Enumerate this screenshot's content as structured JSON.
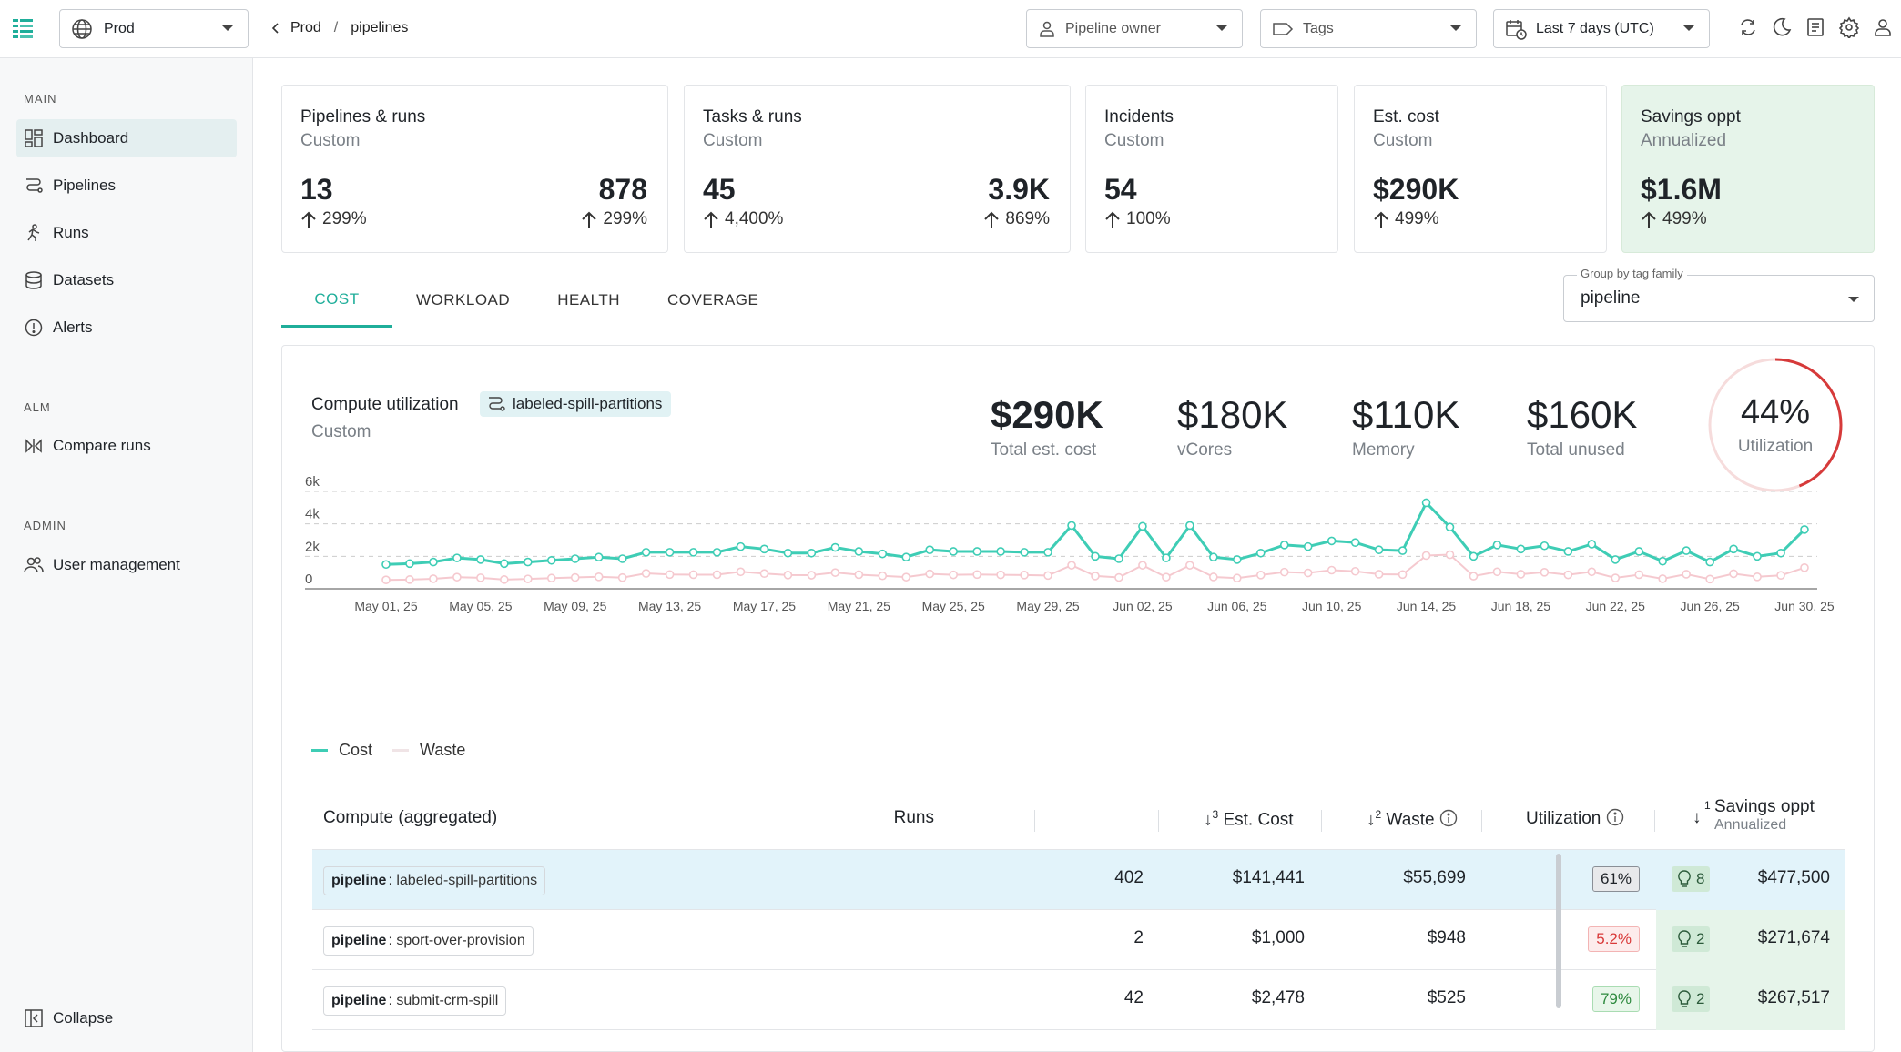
{
  "header": {
    "environment": "Prod",
    "breadcrumb": [
      "Prod",
      "pipelines"
    ],
    "filters": {
      "owner_placeholder": "Pipeline owner",
      "tags_placeholder": "Tags",
      "date_range": "Last 7 days (UTC)"
    },
    "icons": [
      "refresh-icon",
      "dark-mode-icon",
      "docs-icon",
      "settings-icon",
      "user-icon"
    ]
  },
  "sidebar": {
    "main_title": "MAIN",
    "main_items": [
      {
        "label": "Dashboard",
        "icon": "dashboard-icon",
        "active": true
      },
      {
        "label": "Pipelines",
        "icon": "pipelines-icon"
      },
      {
        "label": "Runs",
        "icon": "runs-icon"
      },
      {
        "label": "Datasets",
        "icon": "datasets-icon"
      },
      {
        "label": "Alerts",
        "icon": "alerts-icon"
      }
    ],
    "alm_title": "ALM",
    "alm_items": [
      {
        "label": "Compare runs",
        "icon": "compare-icon"
      }
    ],
    "admin_title": "ADMIN",
    "admin_items": [
      {
        "label": "User management",
        "icon": "users-icon"
      }
    ],
    "collapse_label": "Collapse"
  },
  "kpis": [
    {
      "title": "Pipelines & runs",
      "subtitle": "Custom",
      "values": [
        {
          "value": "13",
          "delta": "299%"
        },
        {
          "value": "878",
          "delta": "299%"
        }
      ]
    },
    {
      "title": "Tasks & runs",
      "subtitle": "Custom",
      "values": [
        {
          "value": "45",
          "delta": "4,400%"
        },
        {
          "value": "3.9K",
          "delta": "869%"
        }
      ]
    },
    {
      "title": "Incidents",
      "subtitle": "Custom",
      "values": [
        {
          "value": "54",
          "delta": "100%"
        }
      ]
    },
    {
      "title": "Est. cost",
      "subtitle": "Custom",
      "values": [
        {
          "value": "$290K",
          "delta": "499%"
        }
      ]
    },
    {
      "title": "Savings oppt",
      "subtitle": "Annualized",
      "values": [
        {
          "value": "$1.6M",
          "delta": "499%"
        }
      ]
    }
  ],
  "tabs": [
    "COST",
    "WORKLOAD",
    "HEALTH",
    "COVERAGE"
  ],
  "active_tab": "COST",
  "group_by": {
    "label": "Group by tag family",
    "value": "pipeline"
  },
  "utilization": {
    "title": "Compute utilization",
    "subtitle": "Custom",
    "tag": "labeled-spill-partitions",
    "metrics": [
      {
        "value": "$290K",
        "label": "Total est. cost"
      },
      {
        "value": "$180K",
        "label": "vCores"
      },
      {
        "value": "$110K",
        "label": "Memory"
      },
      {
        "value": "$160K",
        "label": "Total unused"
      }
    ],
    "gauge": {
      "value": "44%",
      "label": "Utilization",
      "fraction": 0.44
    }
  },
  "chart_data": {
    "type": "line",
    "x": [
      "May 01",
      "May 02",
      "May 03",
      "May 04",
      "May 05",
      "May 06",
      "May 07",
      "May 08",
      "May 09",
      "May 10",
      "May 11",
      "May 12",
      "May 13",
      "May 14",
      "May 15",
      "May 16",
      "May 17",
      "May 18",
      "May 19",
      "May 20",
      "May 21",
      "May 22",
      "May 23",
      "May 24",
      "May 25",
      "May 26",
      "May 27",
      "May 28",
      "May 29",
      "May 30",
      "May 31",
      "Jun 01",
      "Jun 02",
      "Jun 03",
      "Jun 04",
      "Jun 05",
      "Jun 06",
      "Jun 07",
      "Jun 08",
      "Jun 09",
      "Jun 10",
      "Jun 11",
      "Jun 12",
      "Jun 13",
      "Jun 14",
      "Jun 15",
      "Jun 16",
      "Jun 17",
      "Jun 18",
      "Jun 19",
      "Jun 20",
      "Jun 21",
      "Jun 22",
      "Jun 23",
      "Jun 24",
      "Jun 25",
      "Jun 26",
      "Jun 27",
      "Jun 28",
      "Jun 29",
      "Jun 30"
    ],
    "xticks": [
      "May 01, 25",
      "May 05, 25",
      "May 09, 25",
      "May 13, 25",
      "May 17, 25",
      "May 21, 25",
      "May 25, 25",
      "May 29, 25",
      "Jun 02, 25",
      "Jun 06, 25",
      "Jun 10, 25",
      "Jun 14, 25",
      "Jun 18, 25",
      "Jun 22, 25",
      "Jun 26, 25",
      "Jun 30, 25"
    ],
    "yticks": [
      "0",
      "2k",
      "4k",
      "6k"
    ],
    "ylim": [
      0,
      6000
    ],
    "series": [
      {
        "name": "Cost",
        "color": "#3ecdb5",
        "values": [
          1500,
          1550,
          1650,
          1900,
          1800,
          1550,
          1650,
          1750,
          1850,
          1950,
          1850,
          2250,
          2250,
          2250,
          2250,
          2600,
          2450,
          2200,
          2200,
          2550,
          2300,
          2150,
          1950,
          2400,
          2300,
          2300,
          2300,
          2250,
          2250,
          3900,
          2000,
          1850,
          3850,
          1900,
          3900,
          1950,
          1800,
          2200,
          2700,
          2600,
          2950,
          2850,
          2400,
          2350,
          5300,
          3800,
          2000,
          2700,
          2450,
          2650,
          2300,
          2750,
          1800,
          2300,
          1700,
          2350,
          1650,
          2450,
          2000,
          2200,
          3650
        ]
      },
      {
        "name": "Waste",
        "color": "#f5c9cf",
        "values": [
          550,
          570,
          620,
          720,
          680,
          570,
          610,
          660,
          700,
          740,
          690,
          950,
          880,
          870,
          870,
          1050,
          940,
          850,
          840,
          1000,
          870,
          800,
          720,
          920,
          860,
          880,
          860,
          850,
          820,
          1450,
          790,
          700,
          1450,
          720,
          1450,
          730,
          660,
          850,
          1030,
          980,
          1150,
          1080,
          900,
          880,
          2050,
          2100,
          780,
          1050,
          900,
          1020,
          860,
          1050,
          670,
          870,
          620,
          900,
          600,
          930,
          740,
          830,
          1300
        ]
      }
    ],
    "legend": [
      "Cost",
      "Waste"
    ]
  },
  "table": {
    "columns": {
      "name": "Compute (aggregated)",
      "runs": "Runs",
      "cost": "Est. Cost",
      "cost_sort": "3",
      "waste": "Waste",
      "waste_sort": "2",
      "util": "Utilization",
      "savings": "Savings oppt",
      "savings_sort": "1",
      "savings_sub": "Annualized"
    },
    "rows": [
      {
        "key": "pipeline",
        "name": "labeled-spill-partitions",
        "runs": "402",
        "cost": "$141,441",
        "waste": "$55,699",
        "util": "61%",
        "util_status": "gray",
        "recs": "8",
        "savings": "$477,500",
        "selected": true
      },
      {
        "key": "pipeline",
        "name": "sport-over-provision",
        "runs": "2",
        "cost": "$1,000",
        "waste": "$948",
        "util": "5.2%",
        "util_status": "red",
        "recs": "2",
        "savings": "$271,674"
      },
      {
        "key": "pipeline",
        "name": "submit-crm-spill",
        "runs": "42",
        "cost": "$2,478",
        "waste": "$525",
        "util": "79%",
        "util_status": "green",
        "recs": "2",
        "savings": "$267,517"
      }
    ]
  }
}
